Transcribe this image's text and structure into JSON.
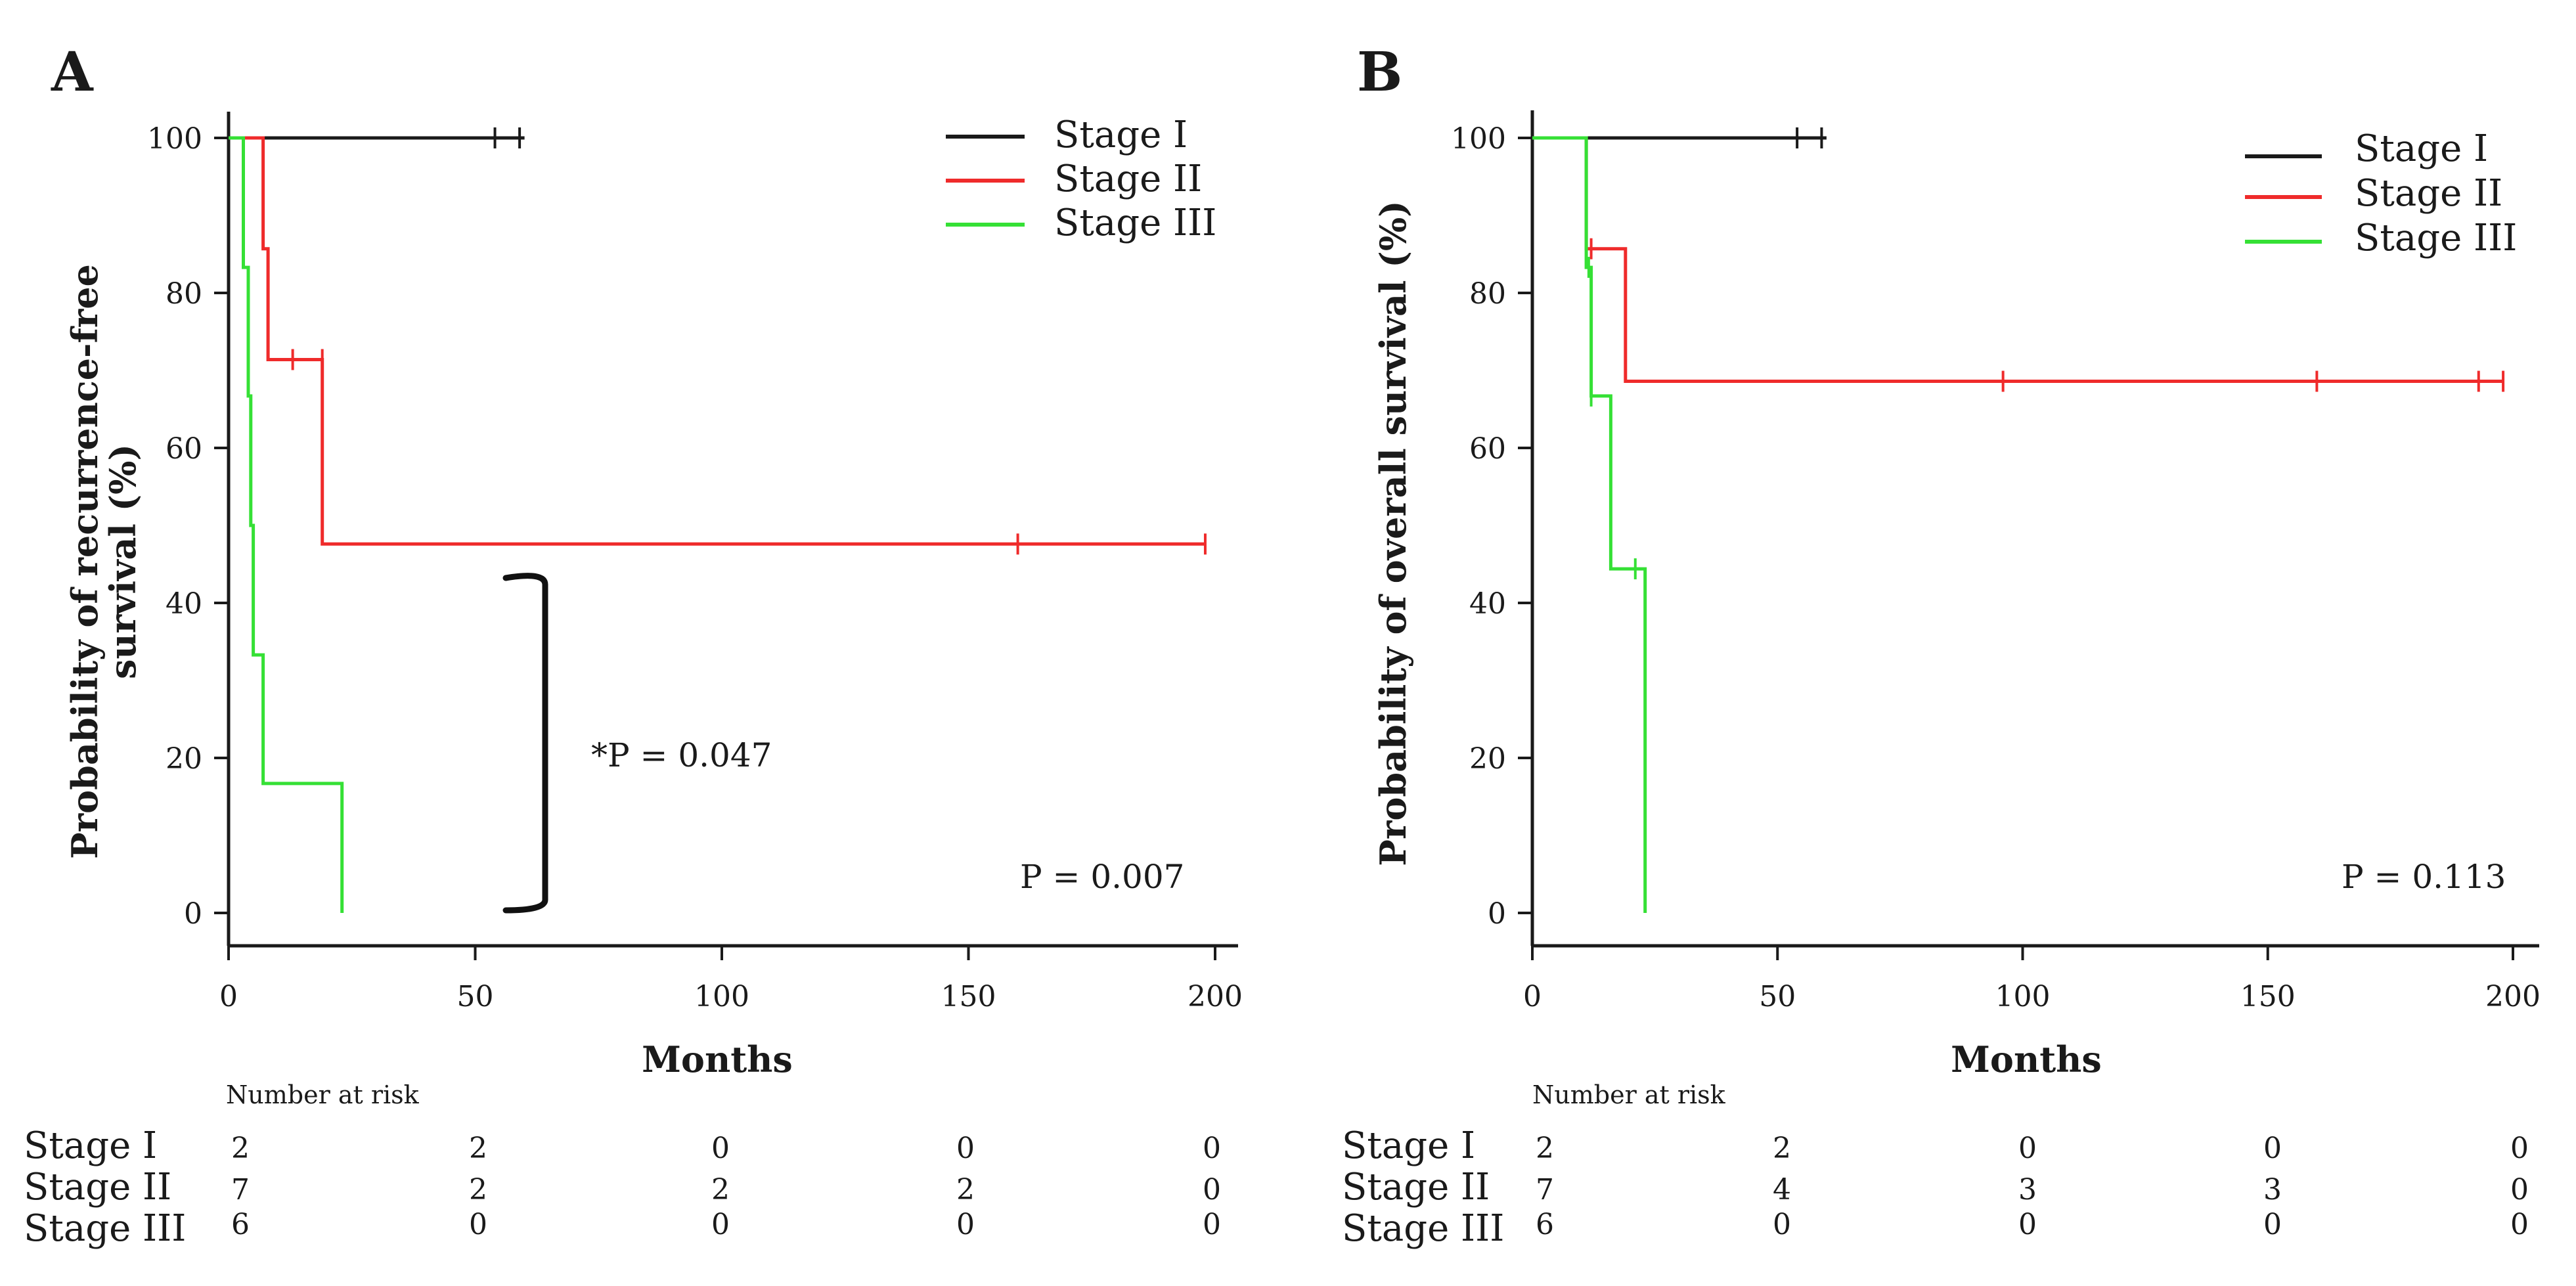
{
  "colors": {
    "stage_1": "#1a1a1a",
    "stage_2": "#ef2b2b",
    "stage_3": "#35e035"
  },
  "chart_data": [
    {
      "type": "line",
      "panel": "A",
      "xlabel": "Months",
      "ylabel_line1": "Probability of recurrence-free",
      "ylabel_line2": "survival (%)",
      "xlim": [
        0,
        200
      ],
      "ylim": [
        0,
        100
      ],
      "x_ticks": [
        0,
        50,
        100,
        150,
        200
      ],
      "y_ticks": [
        0,
        20,
        40,
        60,
        80,
        100
      ],
      "legend": [
        "Stage I",
        "Stage II",
        "Stage III"
      ],
      "series": [
        {
          "name": "Stage I",
          "color_key": "stage_1",
          "steps": [
            [
              0,
              100
            ],
            [
              60,
              100
            ]
          ],
          "censored": [
            [
              54,
              100
            ],
            [
              59,
              100
            ]
          ]
        },
        {
          "name": "Stage II",
          "color_key": "stage_2",
          "steps": [
            [
              0,
              100
            ],
            [
              7,
              100
            ],
            [
              7,
              85.7
            ],
            [
              8,
              85.7
            ],
            [
              8,
              71.4
            ],
            [
              19,
              71.4
            ],
            [
              19,
              47.6
            ],
            [
              198,
              47.6
            ]
          ],
          "censored": [
            [
              13,
              71.4
            ],
            [
              19,
              71.4
            ],
            [
              160,
              47.6
            ],
            [
              198,
              47.6
            ]
          ]
        },
        {
          "name": "Stage III",
          "color_key": "stage_3",
          "steps": [
            [
              0,
              100
            ],
            [
              3,
              100
            ],
            [
              3,
              83.3
            ],
            [
              4,
              83.3
            ],
            [
              4,
              66.7
            ],
            [
              4.5,
              66.7
            ],
            [
              4.5,
              50
            ],
            [
              5,
              50
            ],
            [
              5,
              33.3
            ],
            [
              7,
              33.3
            ],
            [
              7,
              16.7
            ],
            [
              23,
              16.7
            ],
            [
              23,
              0
            ]
          ],
          "censored": []
        }
      ],
      "annotations": {
        "p_overall": "P = 0.007",
        "p_pairwise": "*P = 0.047"
      },
      "risk_table": {
        "header": "Number at risk",
        "columns_at_months": [
          0,
          50,
          100,
          150,
          200
        ],
        "rows": [
          {
            "label": "Stage I",
            "values": [
              "2",
              "2",
              "0",
              "0",
              "0"
            ]
          },
          {
            "label": "Stage II",
            "values": [
              "7",
              "2",
              "2",
              "2",
              "0"
            ]
          },
          {
            "label": "Stage III",
            "values": [
              "6",
              "0",
              "0",
              "0",
              "0"
            ]
          }
        ]
      }
    },
    {
      "type": "line",
      "panel": "B",
      "xlabel": "Months",
      "ylabel_line1": "Probability of overall survival (%)",
      "ylabel_line2": "",
      "xlim": [
        0,
        200
      ],
      "ylim": [
        0,
        100
      ],
      "x_ticks": [
        0,
        50,
        100,
        150,
        200
      ],
      "y_ticks": [
        0,
        20,
        40,
        60,
        80,
        100
      ],
      "legend": [
        "Stage I",
        "Stage II",
        "Stage III"
      ],
      "series": [
        {
          "name": "Stage I",
          "color_key": "stage_1",
          "steps": [
            [
              0,
              100
            ],
            [
              60,
              100
            ]
          ],
          "censored": [
            [
              54,
              100
            ],
            [
              59,
              100
            ]
          ]
        },
        {
          "name": "Stage II",
          "color_key": "stage_2",
          "steps": [
            [
              0,
              100
            ],
            [
              11,
              100
            ],
            [
              11,
              85.7
            ],
            [
              19,
              85.7
            ],
            [
              19,
              68.6
            ],
            [
              198,
              68.6
            ]
          ],
          "censored": [
            [
              12,
              85.7
            ],
            [
              96,
              68.6
            ],
            [
              160,
              68.6
            ],
            [
              193,
              68.6
            ],
            [
              198,
              68.6
            ]
          ]
        },
        {
          "name": "Stage III",
          "color_key": "stage_3",
          "steps": [
            [
              0,
              100
            ],
            [
              11,
              100
            ],
            [
              11,
              83.3
            ],
            [
              12,
              83.3
            ],
            [
              12,
              66.7
            ],
            [
              16,
              66.7
            ],
            [
              16,
              44.4
            ],
            [
              23,
              44.4
            ],
            [
              23,
              0
            ]
          ],
          "censored": [
            [
              11.5,
              83.3
            ],
            [
              12,
              66.7
            ],
            [
              21,
              44.4
            ]
          ]
        }
      ],
      "annotations": {
        "p_overall": "P = 0.113"
      },
      "risk_table": {
        "header": "Number at risk",
        "columns_at_months": [
          0,
          50,
          100,
          150,
          200
        ],
        "rows": [
          {
            "label": "Stage I",
            "values": [
              "2",
              "2",
              "0",
              "0",
              "0"
            ]
          },
          {
            "label": "Stage II",
            "values": [
              "7",
              "4",
              "3",
              "3",
              "0"
            ]
          },
          {
            "label": "Stage III",
            "values": [
              "6",
              "0",
              "0",
              "0",
              "0"
            ]
          }
        ]
      }
    }
  ]
}
